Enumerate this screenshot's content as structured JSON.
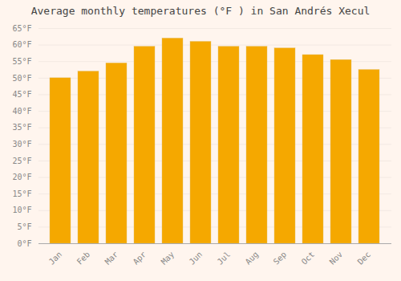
{
  "chart_data": {
    "type": "bar",
    "title": "Average monthly temperatures (°F ) in San Andrés Xecul",
    "categories": [
      "Jan",
      "Feb",
      "Mar",
      "Apr",
      "May",
      "Jun",
      "Jul",
      "Aug",
      "Sep",
      "Oct",
      "Nov",
      "Dec"
    ],
    "values": [
      50,
      52,
      54.5,
      59.5,
      62,
      61,
      59.5,
      59.5,
      59,
      57,
      55.5,
      52.5
    ],
    "color": "#F5A800",
    "ylim": [
      0,
      65
    ],
    "yticks": [
      {
        "value": 0,
        "label": "0°F"
      },
      {
        "value": 5,
        "label": "5°F"
      },
      {
        "value": 10,
        "label": "10°F"
      },
      {
        "value": 15,
        "label": "15°F"
      },
      {
        "value": 20,
        "label": "20°F"
      },
      {
        "value": 25,
        "label": "25°F"
      },
      {
        "value": 30,
        "label": "30°F"
      },
      {
        "value": 35,
        "label": "35°F"
      },
      {
        "value": 40,
        "label": "40°F"
      },
      {
        "value": 45,
        "label": "45°F"
      },
      {
        "value": 50,
        "label": "50°F"
      },
      {
        "value": 55,
        "label": "55°F"
      },
      {
        "value": 60,
        "label": "60°F"
      },
      {
        "value": 65,
        "label": "65°F"
      }
    ],
    "grid": true
  }
}
